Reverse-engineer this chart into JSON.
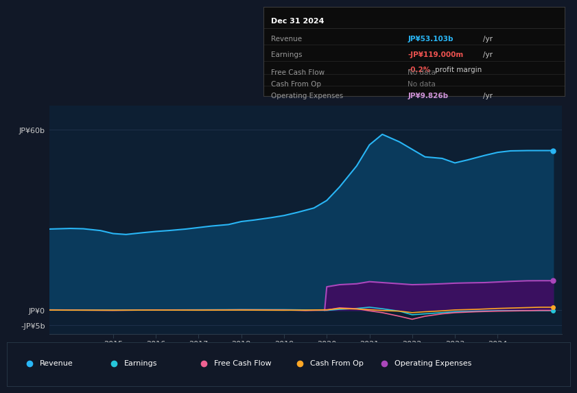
{
  "background_color": "#111827",
  "plot_area_color": "#0d1f33",
  "title": "Dec 31 2024",
  "tooltip": {
    "date": "Dec 31 2024",
    "revenue_label": "Revenue",
    "revenue_value": "JP¥53.103b",
    "revenue_unit": "/yr",
    "earnings_label": "Earnings",
    "earnings_value": "-JP¥119.000m",
    "earnings_unit": "/yr",
    "profit_margin": "-0.2% profit margin",
    "fcf_label": "Free Cash Flow",
    "fcf_value": "No data",
    "cashop_label": "Cash From Op",
    "cashop_value": "No data",
    "opex_label": "Operating Expenses",
    "opex_value": "JP¥9.826b",
    "opex_unit": "/yr"
  },
  "ytick_labels": [
    "JP¥60b",
    "JP¥0",
    "-JP¥5b"
  ],
  "ytick_values": [
    60000000000,
    0,
    -5000000000
  ],
  "xticks": [
    2015,
    2016,
    2017,
    2018,
    2019,
    2020,
    2021,
    2022,
    2023,
    2024
  ],
  "ylim": [
    -8000000000,
    68000000000
  ],
  "xlim_start": 2013.5,
  "xlim_end": 2025.5,
  "colors": {
    "revenue": "#29b6f6",
    "earnings": "#26c6da",
    "free_cash_flow": "#f06292",
    "cash_from_op": "#ffa726",
    "operating_expenses": "#ab47bc",
    "revenue_fill": "#0a3a5c",
    "opex_fill": "#3a1060"
  },
  "legend": [
    {
      "label": "Revenue",
      "color": "#29b6f6"
    },
    {
      "label": "Earnings",
      "color": "#26c6da"
    },
    {
      "label": "Free Cash Flow",
      "color": "#f06292"
    },
    {
      "label": "Cash From Op",
      "color": "#ffa726"
    },
    {
      "label": "Operating Expenses",
      "color": "#ab47bc"
    }
  ],
  "revenue_x": [
    2013.5,
    2014.0,
    2014.3,
    2014.7,
    2015.0,
    2015.3,
    2015.7,
    2016.0,
    2016.3,
    2016.7,
    2017.0,
    2017.3,
    2017.7,
    2018.0,
    2018.3,
    2018.7,
    2019.0,
    2019.3,
    2019.7,
    2020.0,
    2020.3,
    2020.7,
    2021.0,
    2021.3,
    2021.7,
    2022.0,
    2022.3,
    2022.7,
    2023.0,
    2023.3,
    2023.7,
    2024.0,
    2024.3,
    2024.7,
    2025.0,
    2025.3
  ],
  "revenue_y": [
    27.0,
    27.2,
    27.1,
    26.5,
    25.5,
    25.2,
    25.8,
    26.2,
    26.5,
    27.0,
    27.5,
    28.0,
    28.5,
    29.5,
    30.0,
    30.8,
    31.5,
    32.5,
    34.0,
    36.5,
    41.0,
    48.0,
    55.0,
    58.5,
    56.0,
    53.5,
    51.0,
    50.5,
    49.0,
    50.0,
    51.5,
    52.5,
    53.0,
    53.1,
    53.103,
    53.103
  ],
  "earnings_x": [
    2013.5,
    2014.0,
    2015.0,
    2016.0,
    2017.0,
    2018.0,
    2019.0,
    2019.5,
    2020.0,
    2020.3,
    2020.7,
    2021.0,
    2021.3,
    2021.7,
    2022.0,
    2022.3,
    2022.7,
    2023.0,
    2023.5,
    2024.0,
    2024.5,
    2025.0,
    2025.3
  ],
  "earnings_y": [
    0.15,
    0.1,
    0.05,
    0.1,
    0.15,
    0.2,
    0.2,
    0.1,
    -0.05,
    0.3,
    0.6,
    1.0,
    0.5,
    -0.3,
    -1.5,
    -1.2,
    -0.8,
    -0.5,
    -0.3,
    -0.15,
    -0.119,
    -0.119,
    -0.119
  ],
  "fcf_x": [
    2013.5,
    2014.0,
    2015.0,
    2016.0,
    2017.0,
    2018.0,
    2019.0,
    2019.5,
    2020.0,
    2020.3,
    2020.7,
    2021.0,
    2021.3,
    2021.7,
    2022.0,
    2022.3,
    2022.7,
    2023.0,
    2023.5,
    2024.0,
    2024.5,
    2025.0,
    2025.3
  ],
  "fcf_y": [
    0.1,
    0.05,
    -0.05,
    0.1,
    0.05,
    0.15,
    0.1,
    -0.1,
    0.05,
    0.8,
    0.5,
    -0.2,
    -0.8,
    -2.0,
    -3.0,
    -2.0,
    -1.2,
    -0.8,
    -0.5,
    -0.3,
    -0.2,
    -0.05,
    -0.05
  ],
  "cashop_x": [
    2013.5,
    2014.0,
    2015.0,
    2016.0,
    2017.0,
    2018.0,
    2019.0,
    2019.5,
    2020.0,
    2020.3,
    2020.7,
    2021.0,
    2021.3,
    2021.7,
    2022.0,
    2022.3,
    2022.7,
    2023.0,
    2023.5,
    2024.0,
    2024.5,
    2025.0,
    2025.3
  ],
  "cashop_y": [
    0.05,
    0.02,
    0.02,
    0.05,
    0.02,
    0.05,
    0.0,
    0.05,
    0.15,
    0.6,
    0.4,
    0.2,
    -0.1,
    -0.3,
    -0.8,
    -0.5,
    -0.2,
    0.1,
    0.3,
    0.6,
    0.8,
    1.0,
    1.0
  ],
  "opex_x": [
    2019.95,
    2020.0,
    2020.3,
    2020.7,
    2021.0,
    2021.3,
    2021.7,
    2022.0,
    2022.3,
    2022.7,
    2023.0,
    2023.3,
    2023.7,
    2024.0,
    2024.3,
    2024.7,
    2025.0,
    2025.3
  ],
  "opex_y": [
    0.0,
    7.8,
    8.5,
    8.8,
    9.5,
    9.2,
    8.8,
    8.5,
    8.6,
    8.8,
    9.0,
    9.1,
    9.2,
    9.4,
    9.6,
    9.8,
    9.826,
    9.826
  ]
}
